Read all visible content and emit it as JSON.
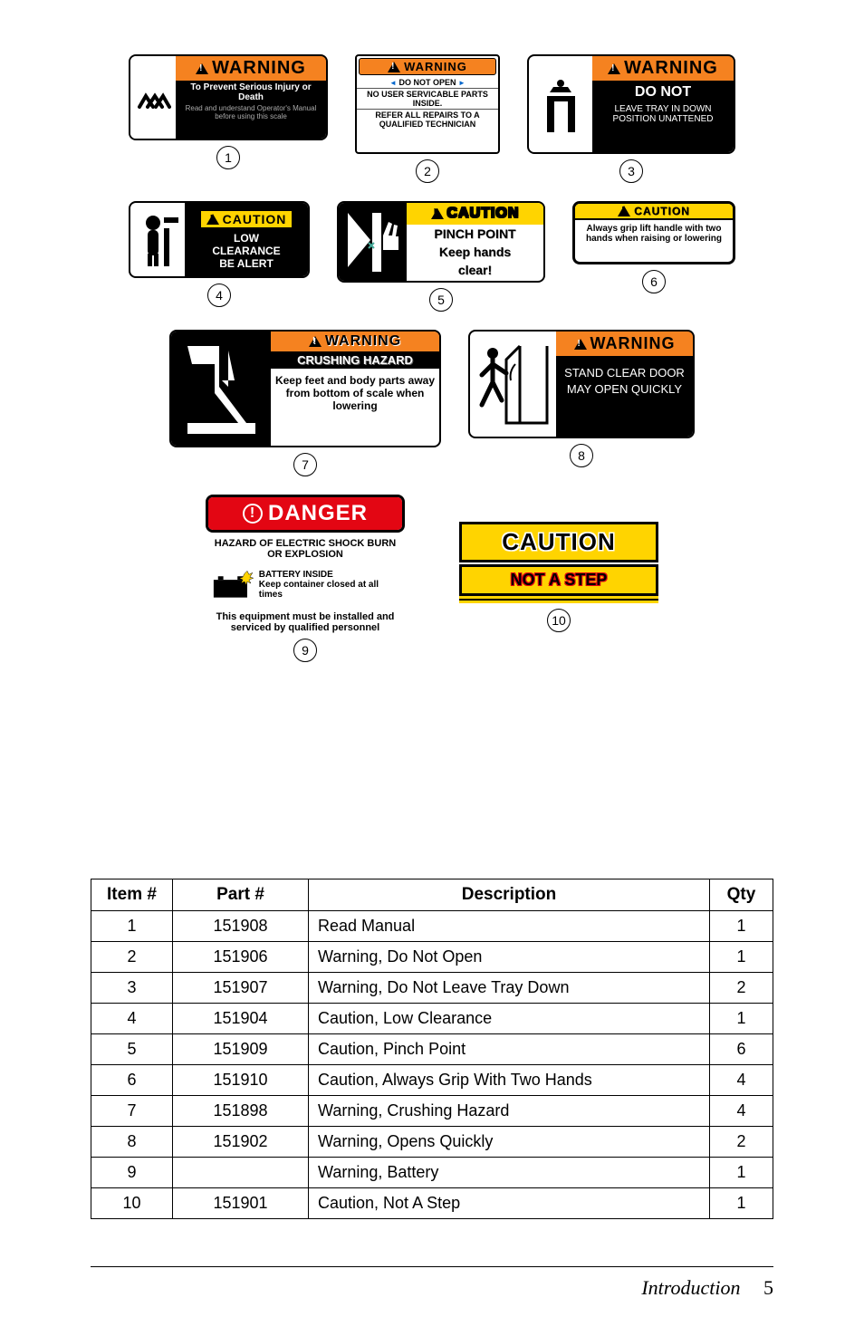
{
  "colors": {
    "orange": "#f58220",
    "yellow": "#ffd400",
    "red": "#e30613",
    "black": "#000000",
    "white": "#ffffff",
    "blue": "#0066cc"
  },
  "labels": {
    "1": {
      "header": "WARNING",
      "sub": "To Prevent Serious Injury or Death",
      "small": "Read and understand Operator's Manual before using this scale"
    },
    "2": {
      "header": "WARNING",
      "l1": "DO NOT OPEN",
      "l2": "NO USER SERVICABLE PARTS INSIDE.",
      "l3": "REFER ALL REPAIRS TO A QUALIFIED TECHNICIAN"
    },
    "3": {
      "header": "WARNING",
      "dn": "DO NOT",
      "txt": "LEAVE TRAY IN DOWN POSITION UNATTENED"
    },
    "4": {
      "header": "CAUTION",
      "t1": "LOW",
      "t2": "CLEARANCE",
      "t3": "BE ALERT"
    },
    "5": {
      "header": "CAUTION",
      "t1": "PINCH POINT",
      "t2": "Keep hands",
      "t3": "clear!"
    },
    "6": {
      "header": "CAUTION",
      "t": "Always grip lift handle with two hands when raising or lowering"
    },
    "7": {
      "header": "WARNING",
      "sub": "CRUSHING HAZARD",
      "t": "Keep feet and body parts away from bottom of scale when lowering"
    },
    "8": {
      "header": "WARNING",
      "t": "STAND CLEAR DOOR MAY OPEN QUICKLY"
    },
    "9": {
      "header": "DANGER",
      "haz": "HAZARD OF ELECTRIC SHOCK BURN OR EXPLOSION",
      "bat1": "BATTERY INSIDE",
      "bat2": "Keep container closed at all times",
      "foot": "This equipment must be installed and serviced by qualified personnel"
    },
    "10": {
      "header": "CAUTION",
      "step": "NOT A STEP"
    }
  },
  "table": {
    "headers": {
      "item": "Item #",
      "part": "Part #",
      "desc": "Description",
      "qty": "Qty"
    },
    "rows": [
      {
        "item": "1",
        "part": "151908",
        "desc": "Read Manual",
        "qty": "1"
      },
      {
        "item": "2",
        "part": "151906",
        "desc": "Warning, Do Not Open",
        "qty": "1"
      },
      {
        "item": "3",
        "part": "151907",
        "desc": "Warning, Do Not Leave Tray Down",
        "qty": "2"
      },
      {
        "item": "4",
        "part": "151904",
        "desc": "Caution, Low Clearance",
        "qty": "1"
      },
      {
        "item": "5",
        "part": "151909",
        "desc": "Caution, Pinch Point",
        "qty": "6"
      },
      {
        "item": "6",
        "part": "151910",
        "desc": "Caution, Always Grip With Two Hands",
        "qty": "4"
      },
      {
        "item": "7",
        "part": "151898",
        "desc": "Warning, Crushing Hazard",
        "qty": "4"
      },
      {
        "item": "8",
        "part": "151902",
        "desc": "Warning, Opens Quickly",
        "qty": "2"
      },
      {
        "item": "9",
        "part": "",
        "desc": "Warning, Battery",
        "qty": "1"
      },
      {
        "item": "10",
        "part": "151901",
        "desc": "Caution, Not A Step",
        "qty": "1"
      }
    ]
  },
  "footer": {
    "section": "Introduction",
    "page": "5"
  }
}
